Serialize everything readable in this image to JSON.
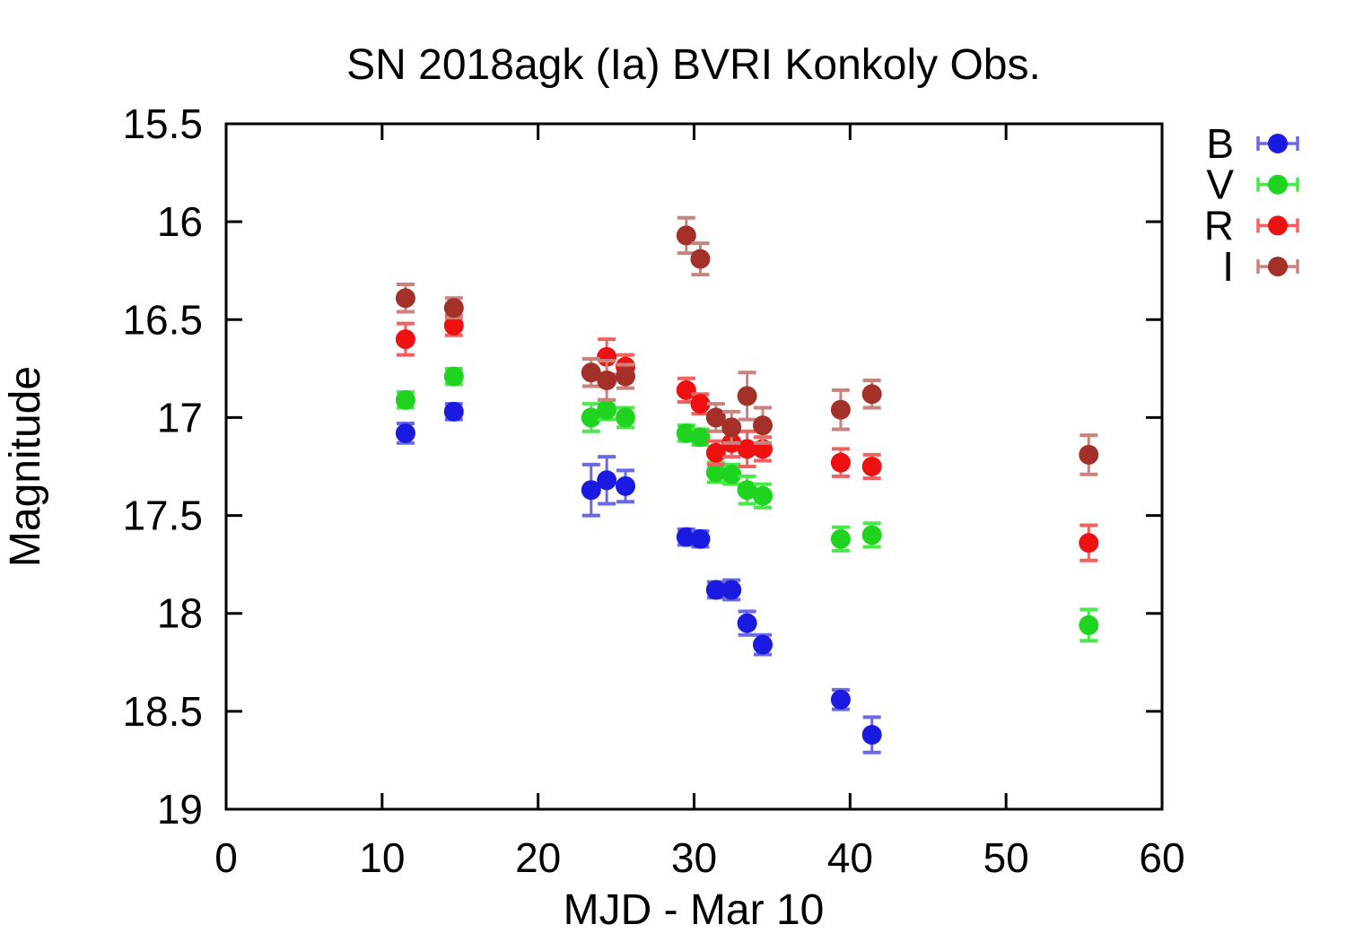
{
  "figure": {
    "background_color": "#ffffff",
    "axis_color": "#000000"
  },
  "chart_data": {
    "type": "scatter",
    "title": "SN 2018agk (Ia) BVRI Konkoly Obs.",
    "xlabel": "MJD - Mar 10",
    "ylabel": "Magnitude",
    "xlim": [
      0,
      60
    ],
    "ylim": [
      15.5,
      19
    ],
    "y_axis_direction": "inverted (magnitude increases downward)",
    "xticks": [
      0,
      10,
      20,
      30,
      40,
      50,
      60
    ],
    "yticks": [
      15.5,
      16,
      16.5,
      17,
      17.5,
      18,
      18.5,
      19
    ],
    "grid": false,
    "ticks_mirrored_inward": true,
    "marker": "filled-circle-with-vertical-error-bars",
    "legend_position": "outside upper-right",
    "point_format": "[x_days, magnitude, magnitude_error]",
    "series": [
      {
        "name": "B",
        "point_color": "#1a1ae0",
        "bar_color": "#6868e8",
        "points": [
          [
            11.5,
            17.08,
            0.05
          ],
          [
            14.6,
            16.97,
            0.04
          ],
          [
            23.4,
            17.37,
            0.13
          ],
          [
            24.4,
            17.32,
            0.12
          ],
          [
            25.6,
            17.35,
            0.08
          ],
          [
            29.5,
            17.61,
            0.04
          ],
          [
            30.4,
            17.62,
            0.04
          ],
          [
            31.4,
            17.88,
            0.04
          ],
          [
            32.4,
            17.88,
            0.05
          ],
          [
            33.4,
            18.05,
            0.06
          ],
          [
            34.4,
            18.16,
            0.05
          ],
          [
            39.4,
            18.44,
            0.05
          ],
          [
            41.4,
            18.62,
            0.09
          ]
        ]
      },
      {
        "name": "V",
        "point_color": "#1fd41f",
        "bar_color": "#4ae84a",
        "points": [
          [
            11.5,
            16.91,
            0.04
          ],
          [
            14.6,
            16.79,
            0.04
          ],
          [
            23.4,
            17.0,
            0.07
          ],
          [
            24.4,
            16.96,
            0.05
          ],
          [
            25.6,
            17.0,
            0.05
          ],
          [
            29.5,
            17.08,
            0.04
          ],
          [
            30.4,
            17.1,
            0.04
          ],
          [
            31.4,
            17.28,
            0.05
          ],
          [
            32.4,
            17.29,
            0.05
          ],
          [
            33.4,
            17.37,
            0.07
          ],
          [
            34.4,
            17.4,
            0.06
          ],
          [
            39.4,
            17.62,
            0.06
          ],
          [
            41.4,
            17.6,
            0.06
          ],
          [
            55.3,
            18.06,
            0.08
          ]
        ]
      },
      {
        "name": "R",
        "point_color": "#ee1111",
        "bar_color": "#f26060",
        "points": [
          [
            11.5,
            16.6,
            0.08
          ],
          [
            14.6,
            16.53,
            0.05
          ],
          [
            24.4,
            16.69,
            0.09
          ],
          [
            25.6,
            16.74,
            0.06
          ],
          [
            29.5,
            16.86,
            0.06
          ],
          [
            30.4,
            16.93,
            0.05
          ],
          [
            31.4,
            17.18,
            0.06
          ],
          [
            32.4,
            17.13,
            0.07
          ],
          [
            33.4,
            17.16,
            0.09
          ],
          [
            34.4,
            17.16,
            0.06
          ],
          [
            39.4,
            17.23,
            0.07
          ],
          [
            41.4,
            17.25,
            0.06
          ],
          [
            55.3,
            17.64,
            0.09
          ]
        ]
      },
      {
        "name": "I",
        "point_color": "#a33029",
        "bar_color": "#c8837d",
        "points": [
          [
            11.5,
            16.39,
            0.07
          ],
          [
            14.6,
            16.44,
            0.05
          ],
          [
            23.4,
            16.77,
            0.07
          ],
          [
            24.4,
            16.81,
            0.1
          ],
          [
            25.6,
            16.79,
            0.06
          ],
          [
            29.5,
            16.07,
            0.09
          ],
          [
            30.4,
            16.19,
            0.08
          ],
          [
            31.4,
            17.0,
            0.07
          ],
          [
            32.4,
            17.05,
            0.08
          ],
          [
            33.4,
            16.89,
            0.12
          ],
          [
            34.4,
            17.04,
            0.09
          ],
          [
            39.4,
            16.96,
            0.1
          ],
          [
            41.4,
            16.88,
            0.07
          ],
          [
            55.3,
            17.19,
            0.1
          ]
        ]
      }
    ]
  }
}
